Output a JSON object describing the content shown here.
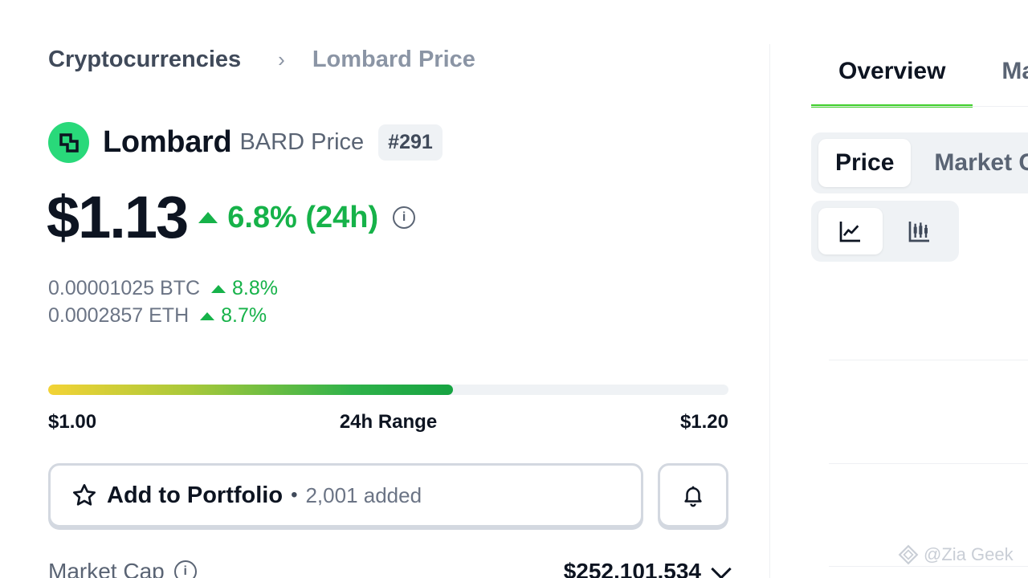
{
  "breadcrumb": {
    "root": "Cryptocurrencies",
    "current": "Lombard Price"
  },
  "coin": {
    "name": "Lombard",
    "symbol_label": "BARD Price",
    "rank": "#291",
    "logo_color": "#29d97a"
  },
  "price": {
    "value": "$1.13",
    "change": "6.8% (24h)",
    "change_color": "#16b249"
  },
  "alt_prices": [
    {
      "value": "0.00001025 BTC",
      "change": "8.8%"
    },
    {
      "value": "0.0002857 ETH",
      "change": "8.7%"
    }
  ],
  "range": {
    "low": "$1.00",
    "label": "24h Range",
    "high": "$1.20",
    "fill_fraction": 0.595
  },
  "portfolio": {
    "label": "Add to Portfolio",
    "added": "2,001 added"
  },
  "market_cap": {
    "label": "Market Cap",
    "value": "$252,101,534"
  },
  "tabs": [
    {
      "label": "Overview",
      "active": true
    },
    {
      "label": "Ma",
      "active": false
    }
  ],
  "chart_type_tabs": [
    {
      "label": "Price",
      "active": true
    },
    {
      "label": "Market C",
      "active": false
    }
  ],
  "chart_style_buttons": [
    {
      "icon": "line-chart-icon",
      "active": true
    },
    {
      "icon": "candlestick-icon",
      "active": false
    }
  ],
  "watermark": "@Zia Geek"
}
